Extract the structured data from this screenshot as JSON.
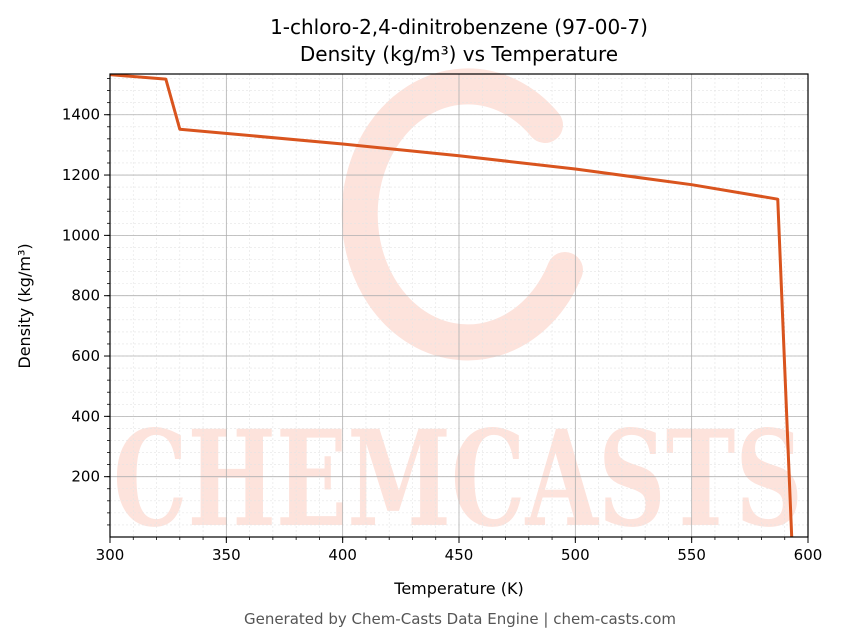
{
  "chart_data": {
    "type": "line",
    "title": "1-chloro-2,4-dinitrobenzene (97-00-7)",
    "subtitle": "Density (kg/m³) vs Temperature",
    "xlabel": "Temperature (K)",
    "ylabel": "Density (kg/m³)",
    "xlim": [
      300,
      600
    ],
    "ylim": [
      0,
      1535
    ],
    "xticks": [
      300,
      350,
      400,
      450,
      500,
      550,
      600
    ],
    "yticks": [
      200,
      400,
      600,
      800,
      1000,
      1200,
      1400
    ],
    "grid": true,
    "series": [
      {
        "color": "#d9541e",
        "x": [
          300,
          324,
          330,
          400,
          450,
          500,
          550,
          587,
          593
        ],
        "y": [
          1533,
          1518,
          1352,
          1303,
          1264,
          1220,
          1168,
          1120,
          0
        ]
      }
    ]
  },
  "watermark": {
    "text": "CHEMCASTS",
    "color": "#fde3dc"
  },
  "footer": {
    "text": "Generated by Chem-Casts Data Engine | chem-casts.com"
  }
}
